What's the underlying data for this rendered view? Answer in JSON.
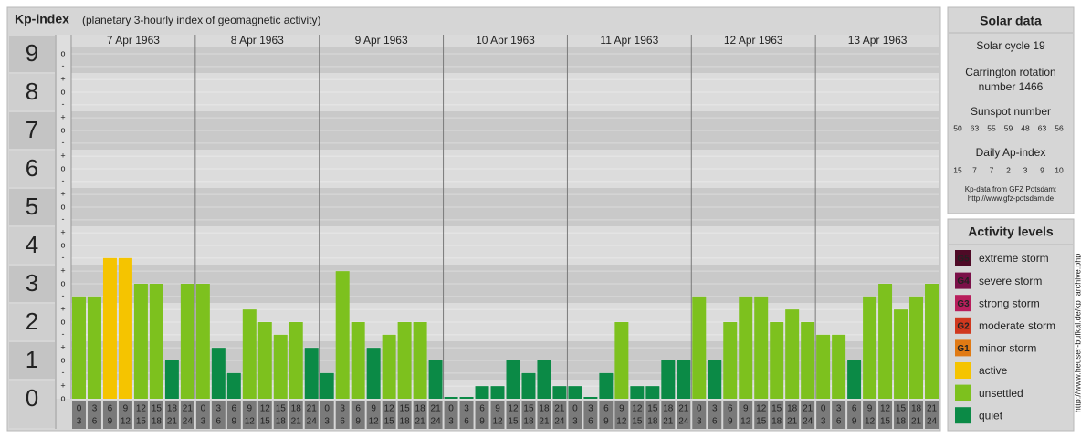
{
  "chart_data": {
    "type": "bar",
    "title": "Kp-index",
    "subtitle": "(planetary 3-hourly index of geomagnetic activity)",
    "ylim": [
      0,
      9.5
    ],
    "yticks": [
      0,
      1,
      2,
      3,
      4,
      5,
      6,
      7,
      8,
      9
    ],
    "minor_yticks": [
      {
        "value": 0,
        "label": "o"
      },
      {
        "value": 0.33,
        "label": "+"
      },
      {
        "value": 0.67,
        "label": "-"
      },
      {
        "value": 1,
        "label": "o"
      },
      {
        "value": 1.33,
        "label": "+"
      },
      {
        "value": 1.67,
        "label": "-"
      },
      {
        "value": 2,
        "label": "o"
      },
      {
        "value": 2.33,
        "label": "+"
      },
      {
        "value": 2.67,
        "label": "-"
      },
      {
        "value": 3,
        "label": "o"
      },
      {
        "value": 3.33,
        "label": "+"
      },
      {
        "value": 3.67,
        "label": "-"
      },
      {
        "value": 4,
        "label": "o"
      },
      {
        "value": 4.33,
        "label": "+"
      },
      {
        "value": 4.67,
        "label": "-"
      },
      {
        "value": 5,
        "label": "o"
      },
      {
        "value": 5.33,
        "label": "+"
      },
      {
        "value": 5.67,
        "label": "-"
      },
      {
        "value": 6,
        "label": "o"
      },
      {
        "value": 6.33,
        "label": "+"
      },
      {
        "value": 6.67,
        "label": "-"
      },
      {
        "value": 7,
        "label": "o"
      },
      {
        "value": 7.33,
        "label": "+"
      },
      {
        "value": 7.67,
        "label": "-"
      },
      {
        "value": 8,
        "label": "o"
      },
      {
        "value": 8.33,
        "label": "+"
      },
      {
        "value": 8.67,
        "label": "-"
      },
      {
        "value": 9,
        "label": "o"
      }
    ],
    "grid": true,
    "hour_start": [
      0,
      3,
      6,
      9,
      12,
      15,
      18,
      21
    ],
    "hour_end": [
      3,
      6,
      9,
      12,
      15,
      18,
      21,
      24
    ],
    "series": [
      {
        "name": "7 Apr 1963",
        "values": [
          2.67,
          2.67,
          3.67,
          3.67,
          3,
          3,
          1,
          3
        ],
        "colors": [
          "#7dc11e",
          "#7dc11e",
          "#f5c400",
          "#f5c400",
          "#7dc11e",
          "#7dc11e",
          "#0b8a46",
          "#7dc11e"
        ]
      },
      {
        "name": "8 Apr 1963",
        "values": [
          3,
          1.33,
          0.67,
          2.33,
          2,
          1.67,
          2,
          1.33
        ],
        "colors": [
          "#7dc11e",
          "#0b8a46",
          "#0b8a46",
          "#7dc11e",
          "#7dc11e",
          "#7dc11e",
          "#7dc11e",
          "#0b8a46"
        ]
      },
      {
        "name": "9 Apr 1963",
        "values": [
          0.67,
          3.33,
          2,
          1.33,
          1.67,
          2,
          2,
          1
        ],
        "colors": [
          "#0b8a46",
          "#7dc11e",
          "#7dc11e",
          "#0b8a46",
          "#7dc11e",
          "#7dc11e",
          "#7dc11e",
          "#0b8a46"
        ]
      },
      {
        "name": "10 Apr 1963",
        "values": [
          0,
          0,
          0.33,
          0.33,
          1,
          0.67,
          1,
          0.33
        ],
        "colors": [
          "#0b8a46",
          "#0b8a46",
          "#0b8a46",
          "#0b8a46",
          "#0b8a46",
          "#0b8a46",
          "#0b8a46",
          "#0b8a46"
        ]
      },
      {
        "name": "11 Apr 1963",
        "values": [
          0.33,
          0,
          0.67,
          2,
          0.33,
          0.33,
          1,
          1
        ],
        "colors": [
          "#0b8a46",
          "#0b8a46",
          "#0b8a46",
          "#7dc11e",
          "#0b8a46",
          "#0b8a46",
          "#0b8a46",
          "#0b8a46"
        ]
      },
      {
        "name": "12 Apr 1963",
        "values": [
          2.67,
          1,
          2,
          2.67,
          2.67,
          2,
          2.33,
          2
        ],
        "colors": [
          "#7dc11e",
          "#0b8a46",
          "#7dc11e",
          "#7dc11e",
          "#7dc11e",
          "#7dc11e",
          "#7dc11e",
          "#7dc11e"
        ]
      },
      {
        "name": "13 Apr 1963",
        "values": [
          1.67,
          1.67,
          1,
          2.67,
          3,
          2.33,
          2.67,
          3
        ],
        "colors": [
          "#7dc11e",
          "#7dc11e",
          "#0b8a46",
          "#7dc11e",
          "#7dc11e",
          "#7dc11e",
          "#7dc11e",
          "#7dc11e"
        ]
      }
    ]
  },
  "solar_data": {
    "title": "Solar data",
    "cycle": "Solar cycle 19",
    "rotation": [
      "Carrington rotation",
      "number 1466"
    ],
    "sunspot_title": "Sunspot number",
    "sunspot_numbers": [
      50,
      63,
      55,
      59,
      48,
      63,
      56
    ],
    "ap_title": "Daily Ap-index",
    "ap_values": [
      15,
      7,
      7,
      2,
      3,
      9,
      10
    ],
    "source": [
      "Kp-data from GFZ Potsdam:",
      "http://www.gfz-potsdam.de"
    ]
  },
  "activity_levels": {
    "title": "Activity levels",
    "items": [
      {
        "badge": "G5",
        "label": "extreme storm",
        "color": "#4e0a26"
      },
      {
        "badge": "G4",
        "label": "severe storm",
        "color": "#7a1048"
      },
      {
        "badge": "G3",
        "label": "strong storm",
        "color": "#b81e5c"
      },
      {
        "badge": "G2",
        "label": "moderate storm",
        "color": "#d0381e"
      },
      {
        "badge": "G1",
        "label": "minor storm",
        "color": "#e07a14"
      },
      {
        "label": "active",
        "color": "#f5c400"
      },
      {
        "label": "unsettled",
        "color": "#7dc11e"
      },
      {
        "label": "quiet",
        "color": "#0b8a46"
      }
    ]
  },
  "watermark": "http://www.heuser-bufkal.de/kp_archive.php"
}
